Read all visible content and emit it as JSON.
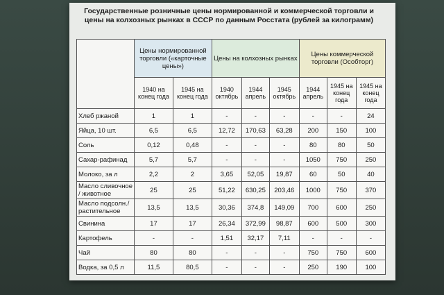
{
  "title": "Государственные розничные цены нормированной и коммерческой торговли и цены на колхозных рынках в СССР по данным Росстата (рублей за килограмм)",
  "groups": [
    {
      "label": "Цены нормированной торговли («карточные цены»)",
      "columns": [
        "1940 на конец года",
        "1945 на конец года"
      ]
    },
    {
      "label": "Цены на колхозных рынках",
      "columns": [
        "1940 октябрь",
        "1944 апрель",
        "1945 октябрь"
      ]
    },
    {
      "label": "Цены коммерческой торговли (Особторг)",
      "columns": [
        "1944 апрель",
        "1945 на конец года",
        "1945 на конец года"
      ]
    }
  ],
  "rows": [
    {
      "label": "Хлеб ржаной",
      "cells": [
        "1",
        "1",
        "-",
        "-",
        "-",
        "-",
        "-",
        "24"
      ]
    },
    {
      "label": "Яйца, 10 шт.",
      "cells": [
        "6,5",
        "6,5",
        "12,72",
        "170,63",
        "63,28",
        "200",
        "150",
        "100"
      ]
    },
    {
      "label": "Соль",
      "cells": [
        "0,12",
        "0,48",
        "-",
        "-",
        "-",
        "80",
        "80",
        "50"
      ]
    },
    {
      "label": "Сахар-рафинад",
      "cells": [
        "5,7",
        "5,7",
        "-",
        "-",
        "-",
        "1050",
        "750",
        "250"
      ]
    },
    {
      "label": "Молоко, за л",
      "cells": [
        "2,2",
        "2",
        "3,65",
        "52,05",
        "19,87",
        "60",
        "50",
        "40"
      ]
    },
    {
      "label": "Масло сливочное / животное",
      "cells": [
        "25",
        "25",
        "51,22",
        "630,25",
        "203,46",
        "1000",
        "750",
        "370"
      ]
    },
    {
      "label": "Масло подсолн./ растительное",
      "cells": [
        "13,5",
        "13,5",
        "30,36",
        "374,8",
        "149,09",
        "700",
        "600",
        "250"
      ]
    },
    {
      "label": "Свинина",
      "cells": [
        "17",
        "17",
        "26,34",
        "372,99",
        "98,87",
        "600",
        "500",
        "300"
      ]
    },
    {
      "label": "Картофель",
      "cells": [
        "-",
        "-",
        "1,51",
        "32,17",
        "7,11",
        "-",
        "-",
        "-"
      ]
    },
    {
      "label": "Чай",
      "cells": [
        "80",
        "80",
        "-",
        "-",
        "-",
        "750",
        "750",
        "600"
      ]
    },
    {
      "label": "Водка, за 0,5 л",
      "cells": [
        "11,5",
        "80,5",
        "-",
        "-",
        "-",
        "250",
        "190",
        "100"
      ]
    }
  ]
}
